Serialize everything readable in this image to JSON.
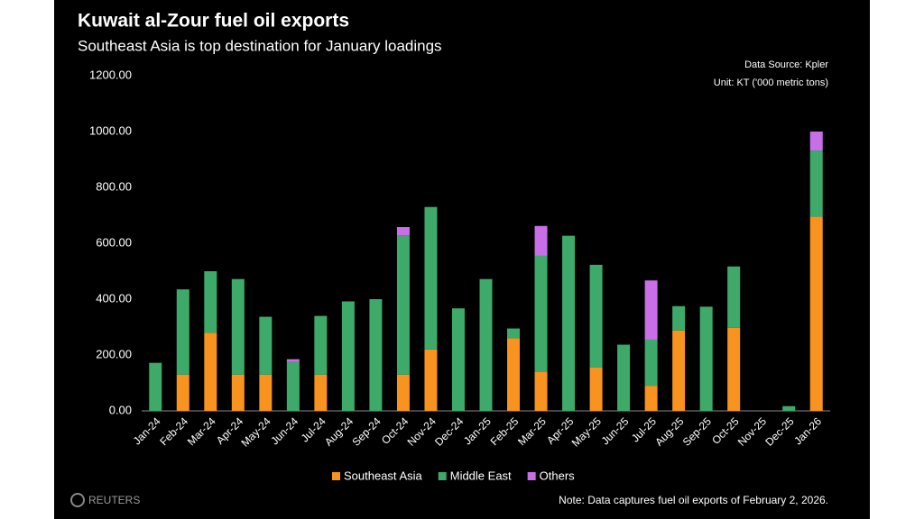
{
  "chart_data": {
    "type": "stacked_bar",
    "title": "Kuwait al-Zour fuel oil exports",
    "subtitle": "Southeast Asia is top destination for January loadings",
    "source": "Data Source: Kpler",
    "unit": "Unit: KT ('000 metric tons)",
    "note": "Note: Data captures fuel oil exports of February 2, 2026.",
    "credit": "REUTERS",
    "categories": [
      "Jan-24",
      "Feb-24",
      "Mar-24",
      "Apr-24",
      "May-24",
      "Jun-24",
      "Jul-24",
      "Aug-24",
      "Sep-24",
      "Oct-24",
      "Nov-24",
      "Dec-24",
      "Jan-25",
      "Feb-25",
      "Mar-25",
      "Apr-25",
      "May-25",
      "Jun-25",
      "Jul-25",
      "Aug-25",
      "Sep-25",
      "Oct-25",
      "Nov-25",
      "Dec-25",
      "Jan-26"
    ],
    "series": [
      {
        "name": "Southeast Asia",
        "color": "#f7931e",
        "values": [
          0,
          130,
          280,
          130,
          130,
          0,
          130,
          0,
          0,
          130,
          220,
          0,
          0,
          260,
          140,
          0,
          155,
          0,
          90,
          288,
          0,
          297,
          0,
          0,
          695
        ]
      },
      {
        "name": "Middle East",
        "color": "#3daa6a",
        "values": [
          172,
          305,
          220,
          342,
          207,
          175,
          210,
          392,
          400,
          498,
          510,
          367,
          472,
          35,
          415,
          627,
          368,
          237,
          165,
          87,
          373,
          220,
          0,
          17,
          237
        ]
      },
      {
        "name": "Others",
        "color": "#c86fe8",
        "values": [
          0,
          0,
          0,
          0,
          0,
          10,
          0,
          0,
          0,
          30,
          0,
          0,
          0,
          0,
          107,
          0,
          0,
          0,
          212,
          0,
          0,
          0,
          0,
          0,
          68
        ]
      }
    ],
    "ylim": [
      0,
      1200
    ],
    "yticks": [
      {
        "value": 0,
        "label": "0.00"
      },
      {
        "value": 200,
        "label": "200.00"
      },
      {
        "value": 400,
        "label": "400.00"
      },
      {
        "value": 600,
        "label": "600.00"
      },
      {
        "value": 800,
        "label": "800.00"
      },
      {
        "value": 1000,
        "label": "1000.00"
      },
      {
        "value": 1200,
        "label": "1200.00"
      }
    ],
    "legend": "bottom"
  }
}
